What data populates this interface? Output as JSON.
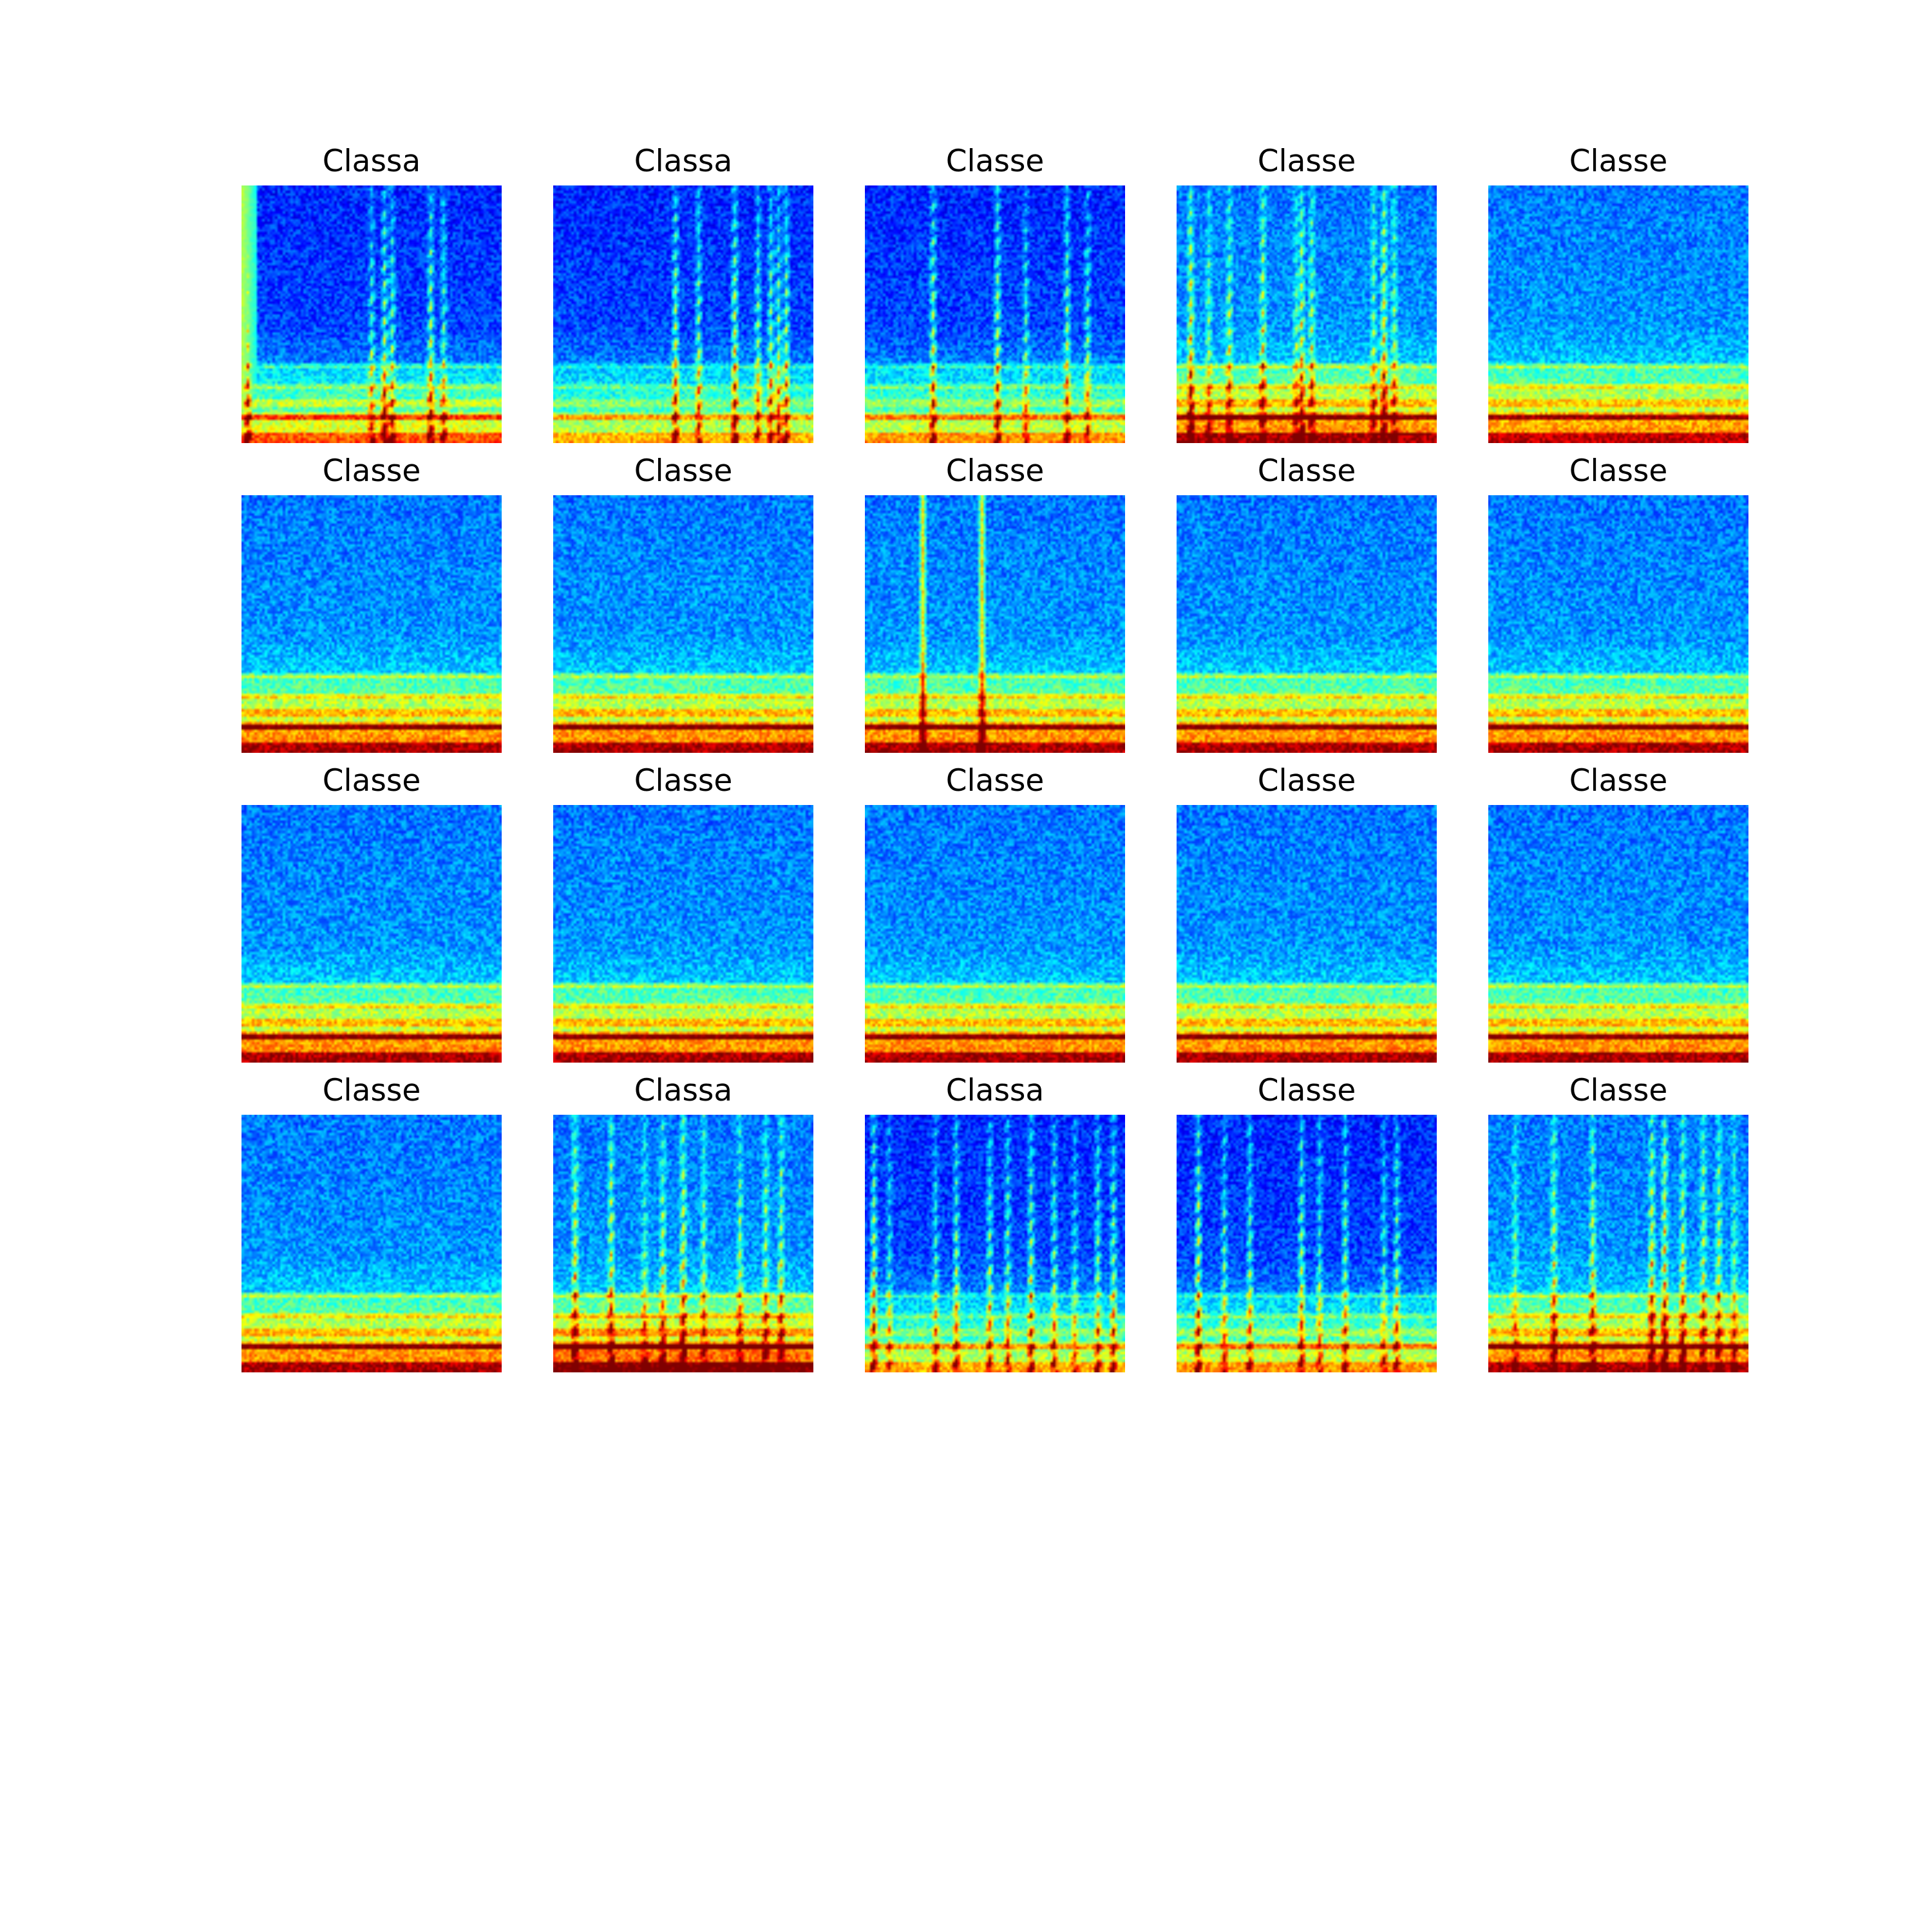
{
  "figure": {
    "background": "#ffffff",
    "colormap": "jet",
    "panels": [
      {
        "title": "Classa",
        "style": "event",
        "lines": [
          0.02,
          0.5,
          0.55,
          0.58,
          0.73,
          0.78
        ],
        "bandIntensity": 0.7,
        "baseDark": true,
        "leftBand": true
      },
      {
        "title": "Classa",
        "style": "event",
        "lines": [
          0.47,
          0.56,
          0.7,
          0.79,
          0.84,
          0.87,
          0.9
        ],
        "bandIntensity": 0.55,
        "baseDark": true
      },
      {
        "title": "Classe",
        "style": "event",
        "lines": [
          0.26,
          0.51,
          0.62,
          0.78,
          0.86
        ],
        "bandIntensity": 0.6,
        "baseDark": true
      },
      {
        "title": "Classe",
        "style": "event",
        "lines": [
          0.05,
          0.12,
          0.2,
          0.33,
          0.46,
          0.48,
          0.52,
          0.76,
          0.8,
          0.84
        ],
        "bandIntensity": 0.85,
        "baseDark": false
      },
      {
        "title": "Classe",
        "style": "noise",
        "lines": [],
        "bandIntensity": 0.8,
        "baseDark": false
      },
      {
        "title": "Classe",
        "style": "noise",
        "lines": [],
        "bandIntensity": 0.85,
        "baseDark": false
      },
      {
        "title": "Classe",
        "style": "noise",
        "lines": [],
        "bandIntensity": 0.85,
        "baseDark": false
      },
      {
        "title": "Classe",
        "style": "noise",
        "lines": [
          0.22,
          0.45
        ],
        "bandIntensity": 0.85,
        "baseDark": false
      },
      {
        "title": "Classe",
        "style": "noise",
        "lines": [],
        "bandIntensity": 0.85,
        "baseDark": false
      },
      {
        "title": "Classe",
        "style": "noise",
        "lines": [],
        "bandIntensity": 0.85,
        "baseDark": false
      },
      {
        "title": "Classe",
        "style": "noise",
        "lines": [],
        "bandIntensity": 0.85,
        "baseDark": false
      },
      {
        "title": "Classe",
        "style": "noise",
        "lines": [],
        "bandIntensity": 0.85,
        "baseDark": false
      },
      {
        "title": "Classe",
        "style": "noise",
        "lines": [],
        "bandIntensity": 0.85,
        "baseDark": false
      },
      {
        "title": "Classe",
        "style": "noise",
        "lines": [],
        "bandIntensity": 0.85,
        "baseDark": false
      },
      {
        "title": "Classe",
        "style": "noise",
        "lines": [],
        "bandIntensity": 0.85,
        "baseDark": false
      },
      {
        "title": "Classe",
        "style": "noise",
        "lines": [],
        "bandIntensity": 0.85,
        "baseDark": false
      },
      {
        "title": "Classa",
        "style": "event",
        "lines": [
          0.08,
          0.22,
          0.35,
          0.42,
          0.5,
          0.58,
          0.72,
          0.82,
          0.88
        ],
        "bandIntensity": 0.95,
        "baseDark": false
      },
      {
        "title": "Classa",
        "style": "event",
        "lines": [
          0.03,
          0.09,
          0.27,
          0.35,
          0.48,
          0.55,
          0.64,
          0.73,
          0.81,
          0.9,
          0.96
        ],
        "bandIntensity": 0.55,
        "baseDark": true
      },
      {
        "title": "Classe",
        "style": "event",
        "lines": [
          0.08,
          0.18,
          0.28,
          0.48,
          0.55,
          0.65,
          0.8,
          0.85
        ],
        "bandIntensity": 0.6,
        "baseDark": true
      },
      {
        "title": "Classe",
        "style": "event",
        "lines": [
          0.1,
          0.25,
          0.4,
          0.63,
          0.68,
          0.75,
          0.83,
          0.89,
          0.95
        ],
        "bandIntensity": 0.85,
        "baseDark": false
      }
    ]
  }
}
